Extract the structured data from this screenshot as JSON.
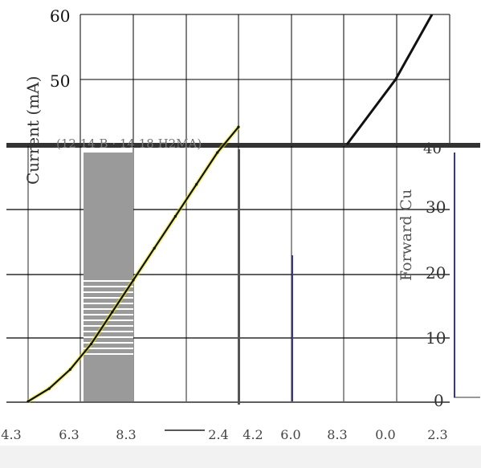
{
  "chart_data": {
    "type": "line",
    "ylabel_left": "Current (mA)",
    "ylabel_right": "Forward Cu",
    "ylim": [
      0,
      60
    ],
    "y_ticks_left": [
      "50",
      "60"
    ],
    "y_ticks_right": [
      "0",
      "10",
      "20",
      "30",
      "40"
    ],
    "top_header_text": "(12 14 B · 14 18 H2MA)",
    "x_tick_labels": [
      "4.3",
      "6.3",
      "8.3",
      "",
      "2.4",
      "4.2",
      "6.0",
      "8.3",
      "0.0",
      "2.3"
    ],
    "series": [
      {
        "values": [
          {
            "x": 0.0,
            "y": 0
          },
          {
            "x": 0.1,
            "y": 2
          },
          {
            "x": 0.2,
            "y": 5
          },
          {
            "x": 0.3,
            "y": 9
          },
          {
            "x": 0.4,
            "y": 14
          },
          {
            "x": 0.5,
            "y": 19
          },
          {
            "x": 0.6,
            "y": 24
          },
          {
            "x": 0.7,
            "y": 29
          },
          {
            "x": 0.8,
            "y": 34
          },
          {
            "x": 0.9,
            "y": 39
          },
          {
            "x": 1.0,
            "y": 43
          }
        ]
      },
      {
        "values": [
          {
            "x": 6.0,
            "y": 40
          },
          {
            "x": 7.0,
            "y": 50
          },
          {
            "x": 7.75,
            "y": 60
          }
        ]
      }
    ],
    "grid": true
  },
  "colors": {
    "line": "#111111",
    "grid": "#000000",
    "band": "#9a9a9a",
    "accent_yellow": "#e8e600",
    "accent_blue": "#3333aa"
  }
}
